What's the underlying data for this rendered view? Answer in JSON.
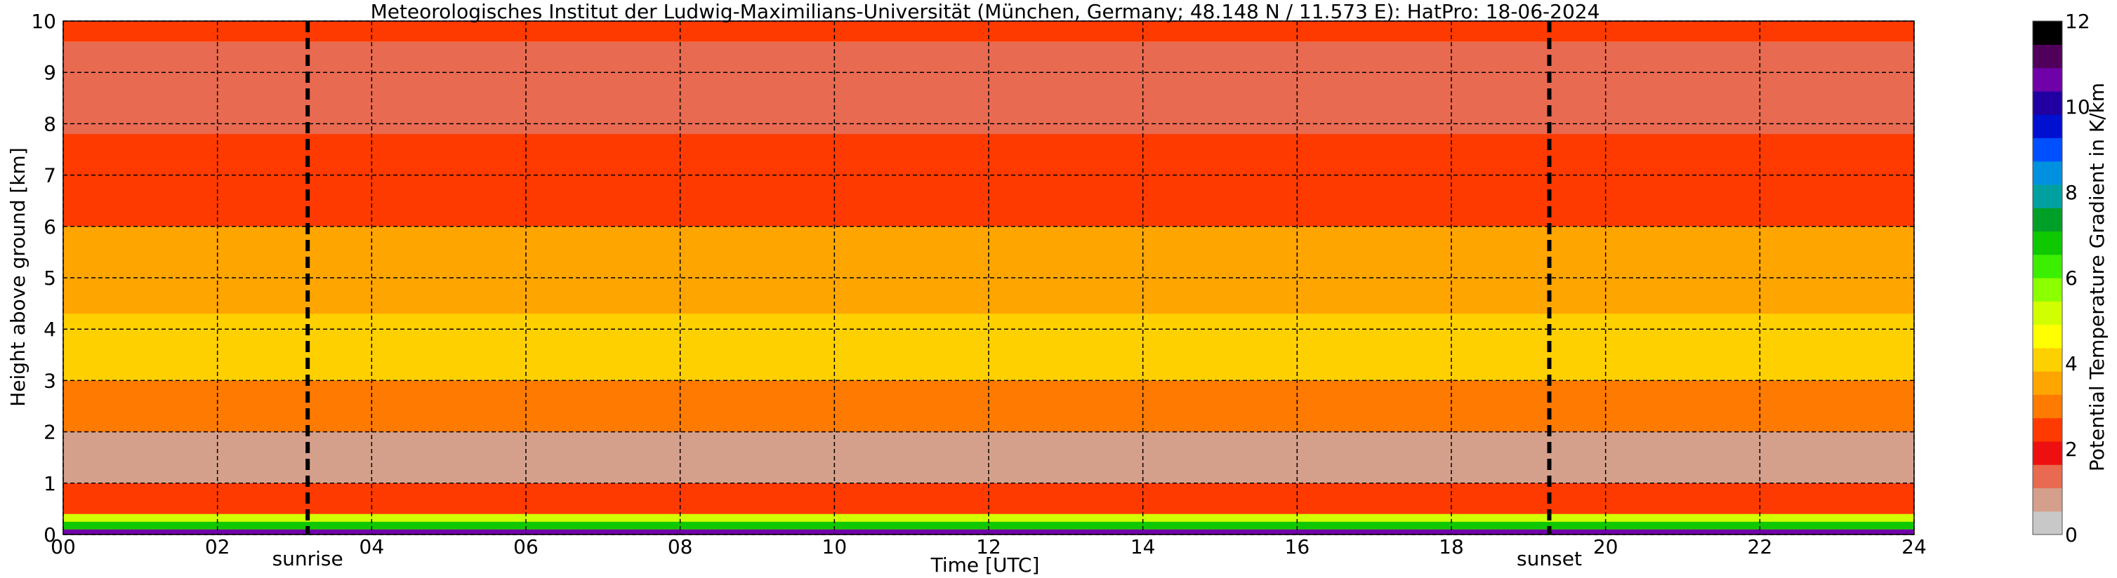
{
  "chart_data": {
    "type": "heatmap",
    "title": "Meteorologisches Institut der Ludwig-Maximilians-Universität (München, Germany; 48.148 N / 11.573 E):    HatPro: 18-06-2024",
    "xlabel": "Time [UTC]",
    "ylabel": "Height above ground [km]",
    "xlim": [
      0,
      24
    ],
    "ylim": [
      0,
      10
    ],
    "x_ticks": [
      "00",
      "02",
      "04",
      "06",
      "08",
      "10",
      "12",
      "14",
      "16",
      "18",
      "20",
      "22",
      "24"
    ],
    "y_ticks": [
      "0",
      "1",
      "2",
      "3",
      "4",
      "5",
      "6",
      "7",
      "8",
      "9",
      "10"
    ],
    "grid": true,
    "colorbar": {
      "label": "Potential Temperature Gradient in K/km",
      "range": [
        0,
        12
      ],
      "ticks": [
        "0",
        "2",
        "4",
        "6",
        "8",
        "10",
        "12"
      ],
      "colors": [
        "#c8c8c8",
        "#d4a08c",
        "#e86a50",
        "#ee1010",
        "#ff3a00",
        "#ff7a00",
        "#ffa500",
        "#ffd000",
        "#ffff00",
        "#d2ff00",
        "#8cff00",
        "#3cef00",
        "#10c800",
        "#00a028",
        "#00a0a0",
        "#0090e0",
        "#0050ff",
        "#0010d0",
        "#2000a0",
        "#7000a8",
        "#50005a",
        "#000000"
      ]
    },
    "vertical_markers": [
      {
        "label": "sunrise",
        "x": 3.17
      },
      {
        "label": "sunset",
        "x": 19.27
      }
    ],
    "profile_bands": [
      {
        "from_km": 0.0,
        "to_km": 0.1,
        "value": 10.5
      },
      {
        "from_km": 0.1,
        "to_km": 0.25,
        "value": 7.0
      },
      {
        "from_km": 0.25,
        "to_km": 0.4,
        "value": 5.0
      },
      {
        "from_km": 0.4,
        "to_km": 1.0,
        "value": 2.5
      },
      {
        "from_km": 1.0,
        "to_km": 2.0,
        "value": 0.9
      },
      {
        "from_km": 2.0,
        "to_km": 3.0,
        "value": 2.8
      },
      {
        "from_km": 3.0,
        "to_km": 4.3,
        "value": 4.0
      },
      {
        "from_km": 4.3,
        "to_km": 6.0,
        "value": 3.7
      },
      {
        "from_km": 6.0,
        "to_km": 7.2,
        "value": 2.6
      },
      {
        "from_km": 7.2,
        "to_km": 7.8,
        "value": 2.2
      },
      {
        "from_km": 7.8,
        "to_km": 9.6,
        "value": 1.1
      },
      {
        "from_km": 9.6,
        "to_km": 10.0,
        "value": 2.5
      }
    ]
  }
}
